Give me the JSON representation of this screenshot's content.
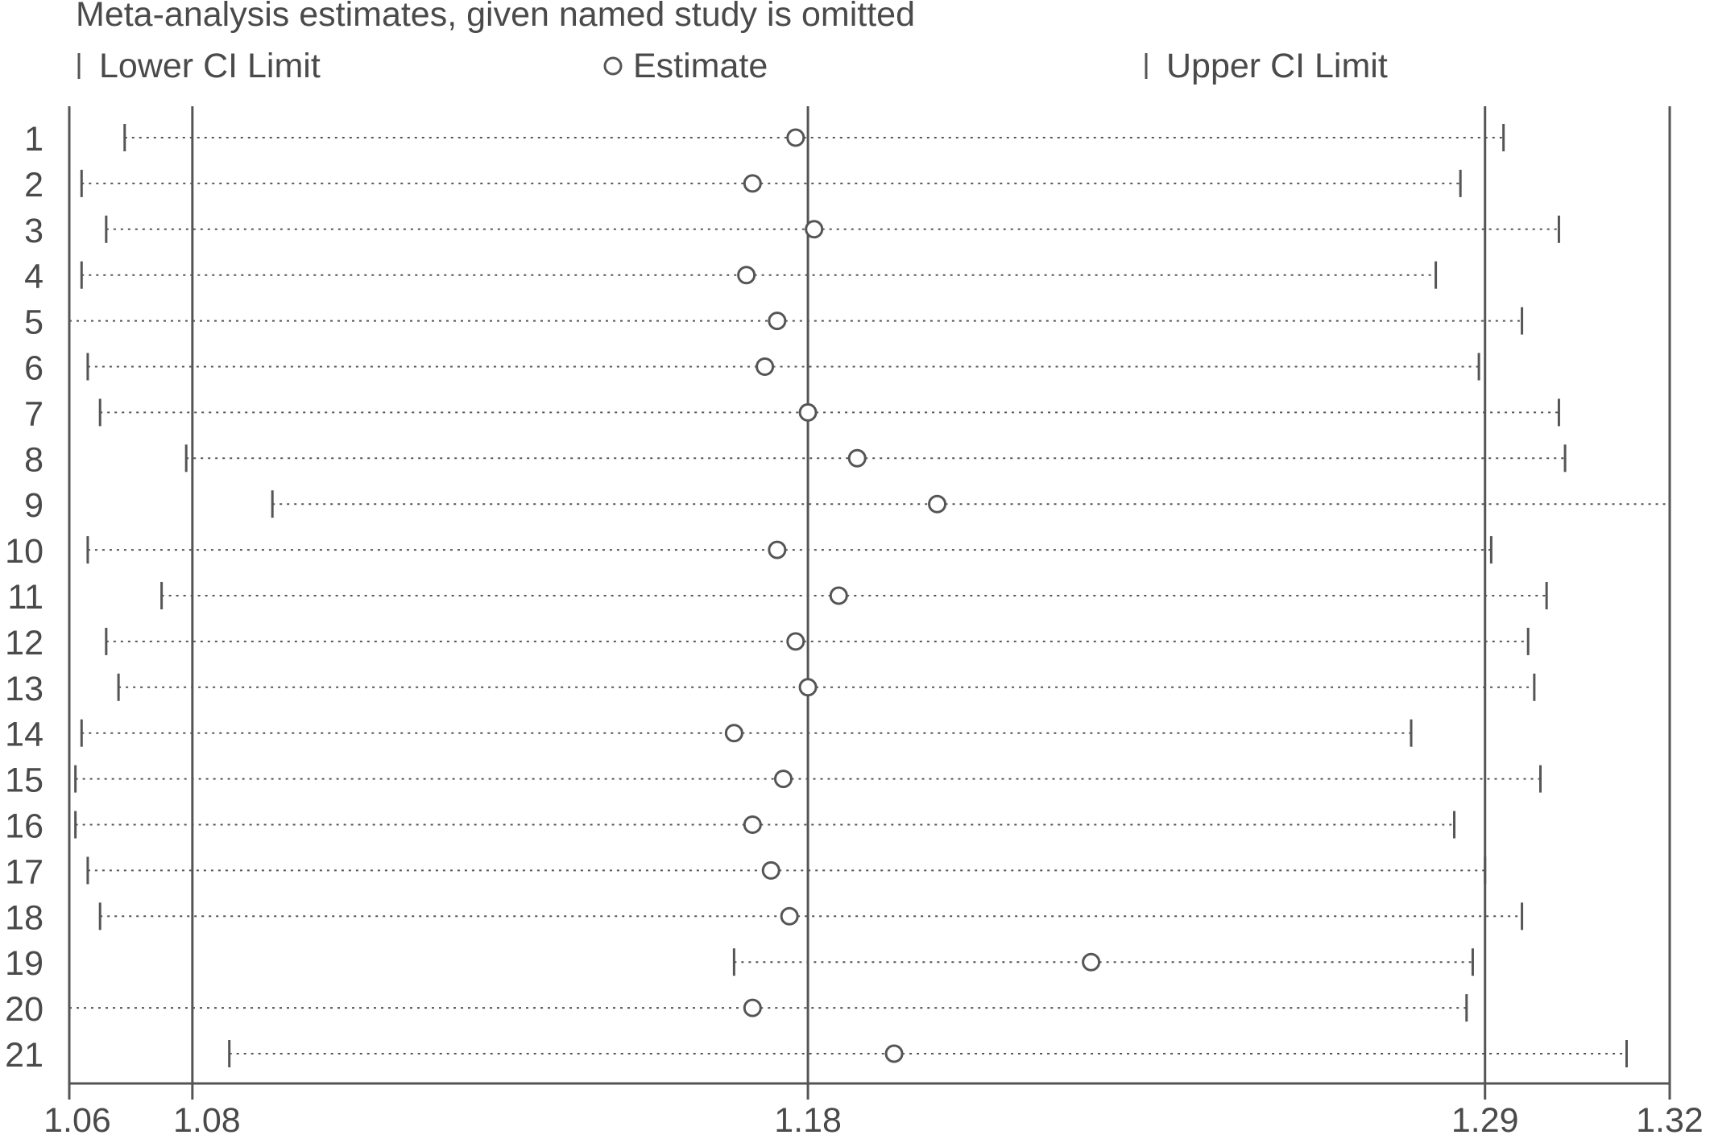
{
  "chart_data": {
    "type": "forest",
    "title": "Meta-analysis estimates, given named study is omitted",
    "legend": {
      "placement": "top",
      "lower_label": "Lower CI Limit",
      "estimate_label": "Estimate",
      "upper_label": "Upper CI Limit"
    },
    "x_ticks": [
      "1.06",
      "1.08",
      "1.18",
      "1.29",
      "1.32"
    ],
    "x_tick_values": [
      1.06,
      1.08,
      1.18,
      1.29,
      1.32
    ],
    "reference_lines": [
      1.08,
      1.18,
      1.29
    ],
    "xlim": [
      1.06,
      1.32
    ],
    "studies": [
      {
        "label": "1",
        "lower": 1.069,
        "estimate": 1.178,
        "upper": 1.293
      },
      {
        "label": "2",
        "lower": 1.062,
        "estimate": 1.171,
        "upper": 1.286
      },
      {
        "label": "3",
        "lower": 1.066,
        "estimate": 1.181,
        "upper": 1.302
      },
      {
        "label": "4",
        "lower": 1.062,
        "estimate": 1.17,
        "upper": 1.282
      },
      {
        "label": "5",
        "lower": 1.06,
        "estimate": 1.175,
        "upper": 1.296
      },
      {
        "label": "6",
        "lower": 1.063,
        "estimate": 1.173,
        "upper": 1.289
      },
      {
        "label": "7",
        "lower": 1.065,
        "estimate": 1.18,
        "upper": 1.302
      },
      {
        "label": "8",
        "lower": 1.079,
        "estimate": 1.188,
        "upper": 1.303
      },
      {
        "label": "9",
        "lower": 1.093,
        "estimate": 1.201,
        "upper": 1.32
      },
      {
        "label": "10",
        "lower": 1.063,
        "estimate": 1.175,
        "upper": 1.291
      },
      {
        "label": "11",
        "lower": 1.075,
        "estimate": 1.185,
        "upper": 1.3
      },
      {
        "label": "12",
        "lower": 1.066,
        "estimate": 1.178,
        "upper": 1.297
      },
      {
        "label": "13",
        "lower": 1.068,
        "estimate": 1.18,
        "upper": 1.298
      },
      {
        "label": "14",
        "lower": 1.062,
        "estimate": 1.168,
        "upper": 1.278
      },
      {
        "label": "15",
        "lower": 1.061,
        "estimate": 1.176,
        "upper": 1.299
      },
      {
        "label": "16",
        "lower": 1.061,
        "estimate": 1.171,
        "upper": 1.285
      },
      {
        "label": "17",
        "lower": 1.063,
        "estimate": 1.174,
        "upper": 1.29
      },
      {
        "label": "18",
        "lower": 1.065,
        "estimate": 1.177,
        "upper": 1.296
      },
      {
        "label": "19",
        "lower": 1.168,
        "estimate": 1.226,
        "upper": 1.288
      },
      {
        "label": "20",
        "lower": 1.06,
        "estimate": 1.171,
        "upper": 1.287
      },
      {
        "label": "21",
        "lower": 1.086,
        "estimate": 1.194,
        "upper": 1.313
      }
    ],
    "colors": {
      "axis": "#555555",
      "marks": "#555555",
      "text": "#4a4a4a",
      "background": "#ffffff"
    }
  }
}
